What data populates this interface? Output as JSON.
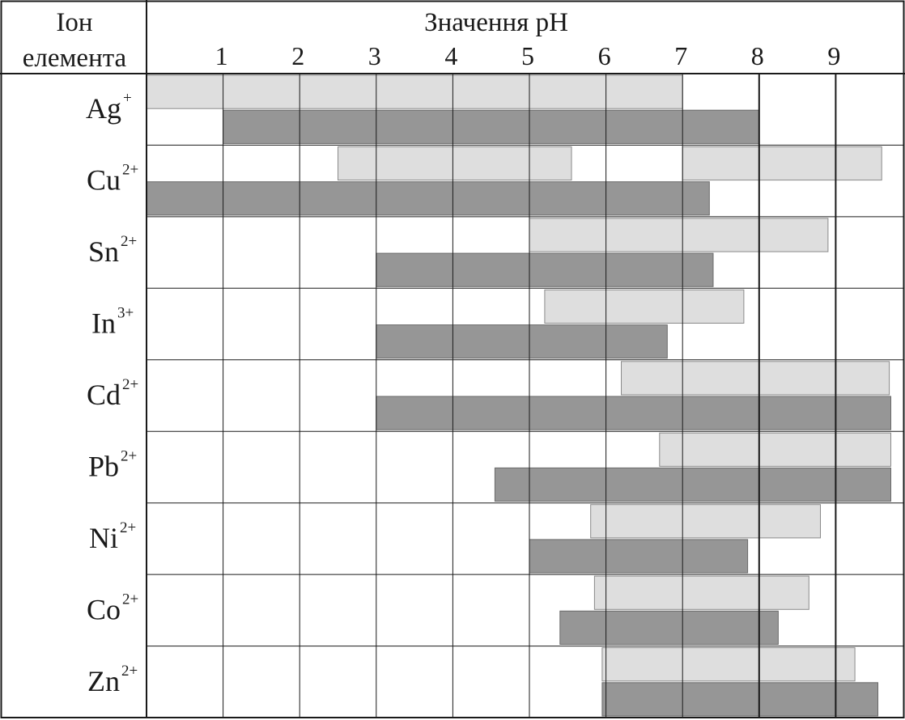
{
  "chart_data": {
    "type": "bar",
    "title": "",
    "corner_header": [
      "Іон",
      "елемента"
    ],
    "xlabel": "Значення pH",
    "x_ticks": [
      "1",
      "2",
      "3",
      "4",
      "5",
      "6",
      "7",
      "8",
      "9"
    ],
    "xlim": [
      0,
      9.9
    ],
    "grid": true,
    "legend": "none",
    "colors": {
      "light": "#dedede",
      "dark": "#969696",
      "grid": "#1a1a1a"
    },
    "rows": [
      {
        "ion": "Ag",
        "charge": "+",
        "light": [
          [
            0.0,
            7.0
          ]
        ],
        "dark": [
          [
            1.0,
            8.0
          ]
        ]
      },
      {
        "ion": "Cu",
        "charge": "2+",
        "light": [
          [
            2.5,
            5.55
          ],
          [
            7.0,
            9.6
          ]
        ],
        "dark": [
          [
            0.0,
            7.35
          ]
        ]
      },
      {
        "ion": "Sn",
        "charge": "2+",
        "light": [
          [
            5.0,
            8.9
          ]
        ],
        "dark": [
          [
            3.0,
            7.4
          ]
        ]
      },
      {
        "ion": "In",
        "charge": "3+",
        "light": [
          [
            5.2,
            7.8
          ]
        ],
        "dark": [
          [
            3.0,
            6.8
          ]
        ]
      },
      {
        "ion": "Cd",
        "charge": "2+",
        "light": [
          [
            6.2,
            9.7
          ]
        ],
        "dark": [
          [
            3.0,
            9.72
          ]
        ]
      },
      {
        "ion": "Pb",
        "charge": "2+",
        "light": [
          [
            6.7,
            9.72
          ]
        ],
        "dark": [
          [
            4.55,
            9.72
          ]
        ]
      },
      {
        "ion": "Ni",
        "charge": "2+",
        "light": [
          [
            5.8,
            8.8
          ]
        ],
        "dark": [
          [
            5.0,
            7.85
          ]
        ]
      },
      {
        "ion": "Co",
        "charge": "2+",
        "light": [
          [
            5.85,
            8.65
          ]
        ],
        "dark": [
          [
            5.4,
            8.25
          ]
        ]
      },
      {
        "ion": "Zn",
        "charge": "2+",
        "light": [
          [
            5.95,
            9.25
          ]
        ],
        "dark": [
          [
            5.95,
            9.55
          ]
        ]
      }
    ]
  }
}
